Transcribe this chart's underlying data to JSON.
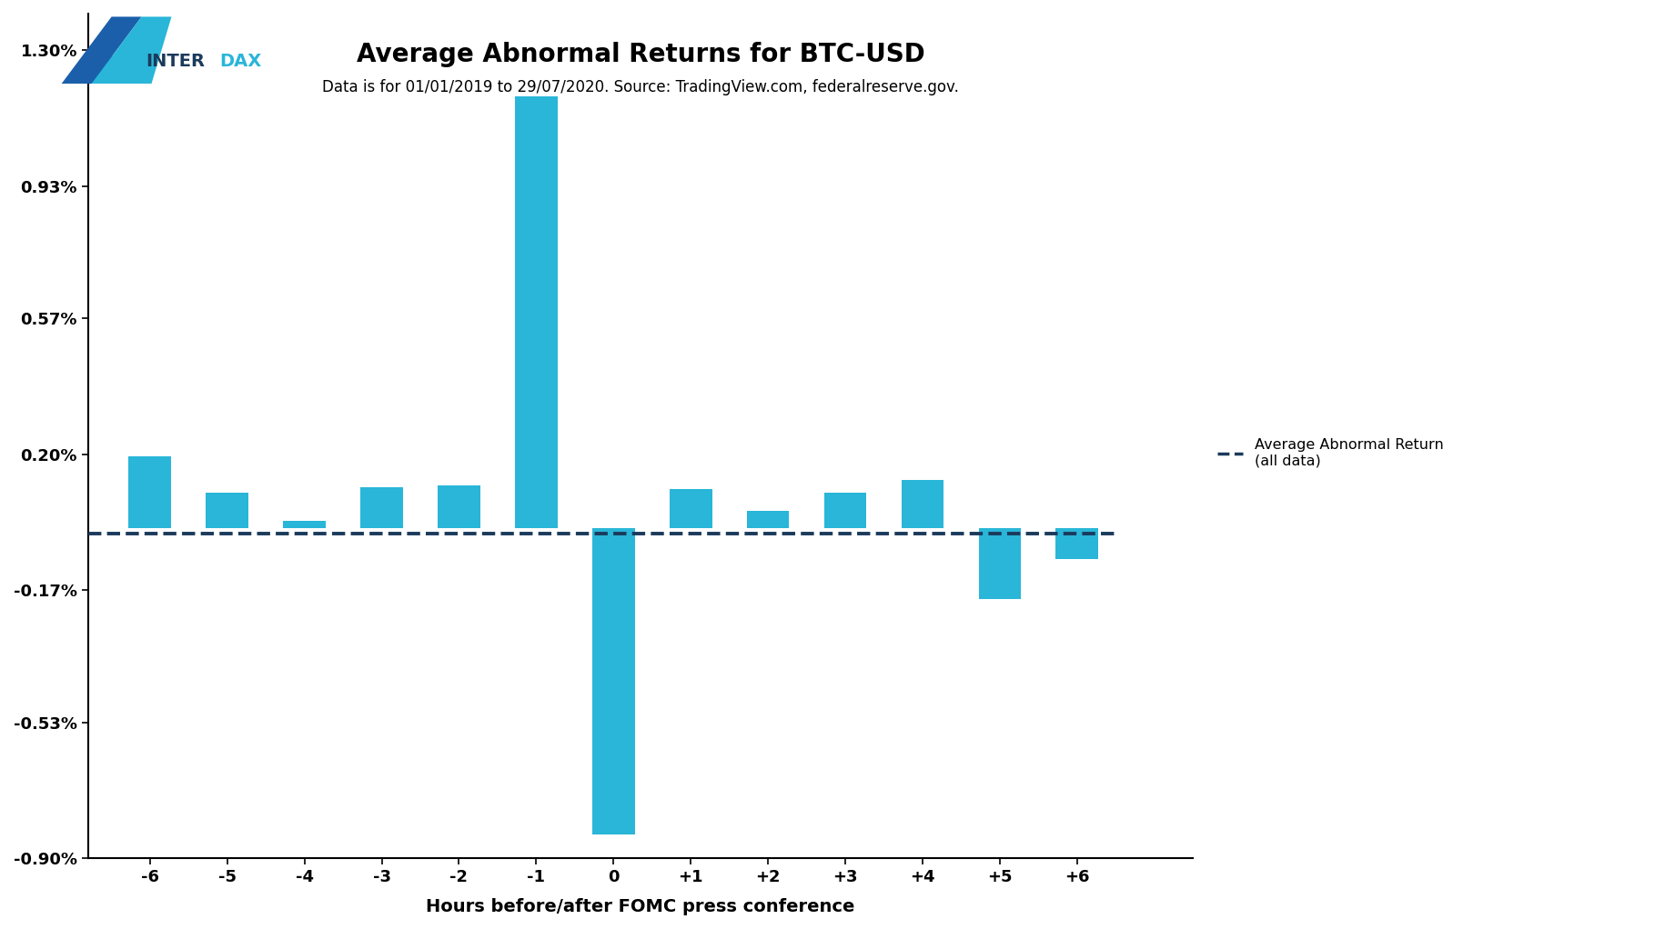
{
  "title": "Average Abnormal Returns for BTC-USD",
  "subtitle": "Data is for 01/01/2019 to 29/07/2020. Source: TradingView.com, federalreserve.gov.",
  "xlabel": "Hours before/after FOMC press conference",
  "bar_color": "#29B6D8",
  "dashed_line_color": "#1B3A5C",
  "hours": [
    -6,
    -5,
    -4,
    -3,
    -2,
    -1,
    0,
    1,
    2,
    3,
    4,
    5,
    6
  ],
  "values": [
    0.00195,
    0.00095,
    0.0002,
    0.0011,
    0.00115,
    0.01175,
    -0.00835,
    0.00105,
    0.00045,
    0.00095,
    0.0013,
    -0.00195,
    -0.00085
  ],
  "avg_line_y": -0.00015,
  "ylim_min": -0.009,
  "ylim_max": 0.014,
  "yticks": [
    -0.009,
    -0.0053,
    -0.0017,
    0.002,
    0.0057,
    0.0093,
    0.013
  ],
  "ytick_labels": [
    "-0.90%",
    "-0.53%",
    "-0.17%",
    "0.20%",
    "0.57%",
    "0.93%",
    "1.30%"
  ],
  "legend_label": "Average Abnormal Return\n(all data)",
  "background_color": "#FFFFFF",
  "tick_label_fontsize": 13,
  "title_fontsize": 20,
  "subtitle_fontsize": 12,
  "xlabel_fontsize": 14,
  "bar_width": 0.55,
  "xlim_min": -6.8,
  "xlim_max": 7.5,
  "interdax_text": "INTERDAX",
  "interdax_color": "#1B3A5C",
  "interdax_x_color": "#29B6D8"
}
